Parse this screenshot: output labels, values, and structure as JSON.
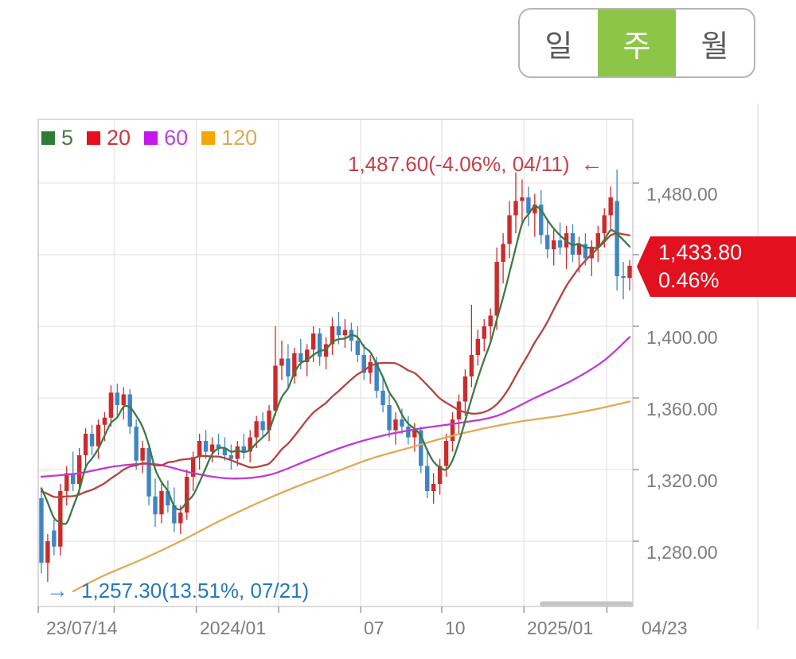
{
  "period_tabs": {
    "active_color": "#8dc549",
    "items": [
      {
        "label": "일",
        "active": false
      },
      {
        "label": "주",
        "active": true
      },
      {
        "label": "월",
        "active": false
      }
    ]
  },
  "legend": {
    "items": [
      {
        "label": "5",
        "square_color": "#2d7d33",
        "text_color": "#4a7a4a"
      },
      {
        "label": "20",
        "square_color": "#e8101c",
        "text_color": "#c9383e"
      },
      {
        "label": "60",
        "square_color": "#c417ea",
        "text_color": "#bb44dd"
      },
      {
        "label": "120",
        "square_color": "#f7a60a",
        "text_color": "#dcab52"
      }
    ]
  },
  "annotations": {
    "high": {
      "text": "1,487.60(-4.06%, 04/11)",
      "arrow": "←",
      "color": "#c4414b",
      "arrow_color": "#cf4048"
    },
    "low": {
      "text": "1,257.30(13.51%, 07/21)",
      "arrow": "→",
      "color": "#2878ba",
      "arrow_color": "#4a90d2"
    }
  },
  "price_badge": {
    "price": "1,433.80",
    "change": "0.46%",
    "bg_color": "#e3101f",
    "text_color": "#ffffff"
  },
  "axes": {
    "y_labels": [
      {
        "text": "1,480.00",
        "value": 1480
      },
      {
        "text": "1,400.00",
        "value": 1400
      },
      {
        "text": "1,360.00",
        "value": 1360
      },
      {
        "text": "1,320.00",
        "value": 1320
      },
      {
        "text": "1,280.00",
        "value": 1280
      }
    ],
    "x_labels": [
      {
        "text": "23/07/14"
      },
      {
        "text": "2024/01"
      },
      {
        "text": "07"
      },
      {
        "text": "10"
      },
      {
        "text": "2025/01"
      },
      {
        "text": "04/23"
      }
    ]
  },
  "chart_data": {
    "type": "candlestick",
    "interval": "weekly",
    "x_range": [
      "2023/07/14",
      "2025/04/23"
    ],
    "ylim": [
      1243,
      1516
    ],
    "grid": true,
    "y_gridlines": [
      1480,
      1440,
      1400,
      1360,
      1320,
      1280
    ],
    "x_gridline_weeks": [
      0,
      12,
      25,
      38,
      51,
      63.8,
      76.8,
      89.9
    ],
    "colors": {
      "up": "#cc2b2b",
      "down": "#3f85c6",
      "grid": "#e5e5e5",
      "border": "#cfcfcf",
      "tick": "#9a9a9a",
      "scrollbar": "#c6c6c6",
      "panel_line": "#e0e0e0"
    },
    "candles": [
      [
        1304,
        1310,
        1262,
        1268
      ],
      [
        1268,
        1284,
        1257.3,
        1280
      ],
      [
        1286,
        1292,
        1272,
        1277
      ],
      [
        1277,
        1312,
        1272,
        1308
      ],
      [
        1308,
        1322,
        1300,
        1318
      ],
      [
        1318,
        1330,
        1308,
        1312
      ],
      [
        1312,
        1332,
        1306,
        1328
      ],
      [
        1328,
        1343,
        1320,
        1340
      ],
      [
        1340,
        1345,
        1328,
        1333
      ],
      [
        1333,
        1348,
        1326,
        1345
      ],
      [
        1345,
        1352,
        1336,
        1349
      ],
      [
        1349,
        1367,
        1344,
        1363
      ],
      [
        1363,
        1368,
        1350,
        1356
      ],
      [
        1356,
        1366,
        1348,
        1362
      ],
      [
        1362,
        1365,
        1340,
        1344
      ],
      [
        1344,
        1348,
        1320,
        1325
      ],
      [
        1325,
        1336,
        1318,
        1332
      ],
      [
        1332,
        1334,
        1300,
        1305
      ],
      [
        1305,
        1315,
        1288,
        1295
      ],
      [
        1295,
        1312,
        1290,
        1308
      ],
      [
        1308,
        1314,
        1296,
        1300
      ],
      [
        1300,
        1310,
        1285,
        1290
      ],
      [
        1290,
        1300,
        1284,
        1296
      ],
      [
        1296,
        1320,
        1292,
        1316
      ],
      [
        1316,
        1330,
        1308,
        1327
      ],
      [
        1327,
        1340,
        1320,
        1336
      ],
      [
        1336,
        1342,
        1326,
        1330
      ],
      [
        1330,
        1338,
        1324,
        1334
      ],
      [
        1334,
        1340,
        1328,
        1332
      ],
      [
        1332,
        1338,
        1325,
        1328
      ],
      [
        1328,
        1334,
        1320,
        1326
      ],
      [
        1326,
        1336,
        1322,
        1333
      ],
      [
        1333,
        1340,
        1326,
        1330
      ],
      [
        1330,
        1342,
        1324,
        1338
      ],
      [
        1338,
        1350,
        1332,
        1347
      ],
      [
        1347,
        1352,
        1338,
        1342
      ],
      [
        1342,
        1356,
        1336,
        1353
      ],
      [
        1353,
        1400,
        1350,
        1378
      ],
      [
        1378,
        1392,
        1370,
        1382
      ],
      [
        1382,
        1390,
        1366,
        1372
      ],
      [
        1372,
        1388,
        1368,
        1385
      ],
      [
        1385,
        1393,
        1376,
        1380
      ],
      [
        1380,
        1390,
        1372,
        1387
      ],
      [
        1387,
        1400,
        1380,
        1396
      ],
      [
        1396,
        1399,
        1378,
        1383
      ],
      [
        1383,
        1394,
        1376,
        1390
      ],
      [
        1390,
        1405,
        1384,
        1400
      ],
      [
        1400,
        1408,
        1390,
        1395
      ],
      [
        1395,
        1404,
        1388,
        1398
      ],
      [
        1398,
        1402,
        1386,
        1392
      ],
      [
        1392,
        1400,
        1380,
        1384
      ],
      [
        1384,
        1390,
        1370,
        1374
      ],
      [
        1374,
        1384,
        1368,
        1380
      ],
      [
        1380,
        1383,
        1360,
        1364
      ],
      [
        1364,
        1372,
        1352,
        1356
      ],
      [
        1356,
        1362,
        1338,
        1342
      ],
      [
        1342,
        1352,
        1334,
        1348
      ],
      [
        1348,
        1354,
        1340,
        1344
      ],
      [
        1344,
        1350,
        1334,
        1338
      ],
      [
        1338,
        1346,
        1330,
        1342
      ],
      [
        1342,
        1344,
        1318,
        1322
      ],
      [
        1322,
        1332,
        1304,
        1308
      ],
      [
        1308,
        1318,
        1301,
        1312
      ],
      [
        1312,
        1326,
        1306,
        1322
      ],
      [
        1322,
        1340,
        1316,
        1336
      ],
      [
        1336,
        1352,
        1330,
        1348
      ],
      [
        1348,
        1362,
        1340,
        1358
      ],
      [
        1358,
        1376,
        1350,
        1372
      ],
      [
        1372,
        1412,
        1366,
        1384
      ],
      [
        1384,
        1398,
        1378,
        1393
      ],
      [
        1393,
        1404,
        1386,
        1400
      ],
      [
        1400,
        1410,
        1392,
        1406
      ],
      [
        1406,
        1444,
        1398,
        1436
      ],
      [
        1436,
        1452,
        1424,
        1446
      ],
      [
        1446,
        1470,
        1438,
        1462
      ],
      [
        1462,
        1486,
        1452,
        1470
      ],
      [
        1470,
        1482,
        1458,
        1472
      ],
      [
        1472,
        1478,
        1456,
        1463
      ],
      [
        1463,
        1474,
        1450,
        1468
      ],
      [
        1468,
        1476,
        1446,
        1451
      ],
      [
        1451,
        1460,
        1438,
        1443
      ],
      [
        1443,
        1454,
        1434,
        1448
      ],
      [
        1448,
        1458,
        1440,
        1444
      ],
      [
        1444,
        1456,
        1432,
        1452
      ],
      [
        1452,
        1457,
        1436,
        1440
      ],
      [
        1440,
        1450,
        1430,
        1446
      ],
      [
        1446,
        1452,
        1434,
        1438
      ],
      [
        1438,
        1448,
        1428,
        1444
      ],
      [
        1444,
        1456,
        1436,
        1452
      ],
      [
        1452,
        1466,
        1444,
        1462
      ],
      [
        1462,
        1478,
        1454,
        1472
      ],
      [
        1470,
        1487.6,
        1420,
        1428
      ],
      [
        1428,
        1436,
        1415,
        1427
      ],
      [
        1427,
        1437,
        1420,
        1433.8
      ]
    ],
    "moving_averages": [
      {
        "name": "120",
        "color": "#e0aa55",
        "points": [
          [
            5,
            1252
          ],
          [
            10,
            1261
          ],
          [
            16,
            1270
          ],
          [
            22,
            1280
          ],
          [
            28,
            1291
          ],
          [
            34,
            1301
          ],
          [
            40,
            1310
          ],
          [
            46,
            1318
          ],
          [
            52,
            1326
          ],
          [
            58,
            1332
          ],
          [
            64,
            1338
          ],
          [
            70,
            1343
          ],
          [
            76,
            1347
          ],
          [
            82,
            1350
          ],
          [
            88,
            1354
          ],
          [
            93,
            1358
          ]
        ]
      },
      {
        "name": "60",
        "color": "#bf3ad1",
        "points": [
          [
            0,
            1316
          ],
          [
            6,
            1318
          ],
          [
            12,
            1322
          ],
          [
            18,
            1323
          ],
          [
            24,
            1318
          ],
          [
            30,
            1315
          ],
          [
            36,
            1317
          ],
          [
            42,
            1325
          ],
          [
            48,
            1333
          ],
          [
            54,
            1339
          ],
          [
            60,
            1343
          ],
          [
            66,
            1346
          ],
          [
            72,
            1350
          ],
          [
            78,
            1360
          ],
          [
            84,
            1370
          ],
          [
            89,
            1381
          ],
          [
            93,
            1394
          ]
        ]
      },
      {
        "name": "20",
        "color": "#b5433f",
        "window": 20,
        "seed": 1310
      },
      {
        "name": "5",
        "color": "#3d7a44",
        "window": 5,
        "seed": 1320
      }
    ]
  }
}
